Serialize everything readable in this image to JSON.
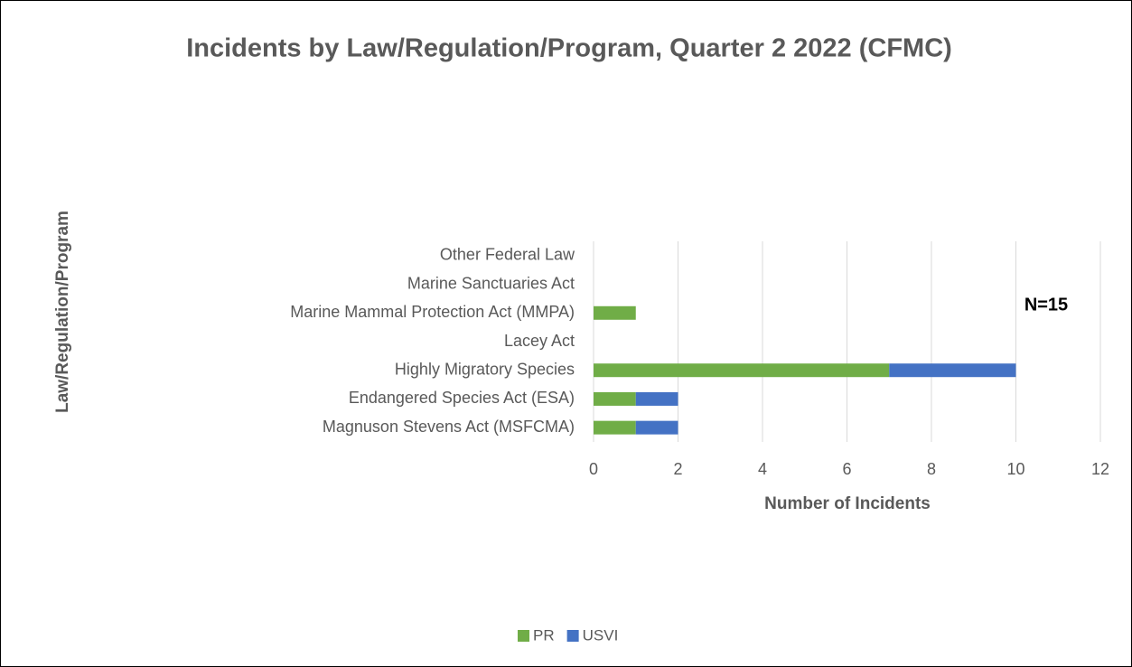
{
  "chart_data": {
    "type": "stacked_barh",
    "title": "Incidents by Law/Regulation/Program, Quarter 2 2022 (CFMC)",
    "x_label": "Number of Incidents",
    "y_label": "Law/Regulation/Program",
    "annotation": "N=15",
    "categories": [
      "Magnuson Stevens Act (MSFCMA)",
      "Endangered Species Act (ESA)",
      "Highly Migratory Species",
      "Lacey Act",
      "Marine Mammal Protection Act (MMPA)",
      "Marine Sanctuaries Act",
      "Other Federal Law"
    ],
    "series": [
      {
        "name": "PR",
        "color": "#70ad47",
        "values": [
          1,
          1,
          7,
          0,
          1,
          0,
          0
        ]
      },
      {
        "name": "USVI",
        "color": "#4472c4",
        "values": [
          1,
          1,
          3,
          0,
          0,
          0,
          0
        ]
      }
    ],
    "xlim": [
      0,
      12
    ],
    "xticks": [
      0,
      2,
      4,
      6,
      8,
      10,
      12
    ],
    "grid": true,
    "legend": "bottom"
  }
}
